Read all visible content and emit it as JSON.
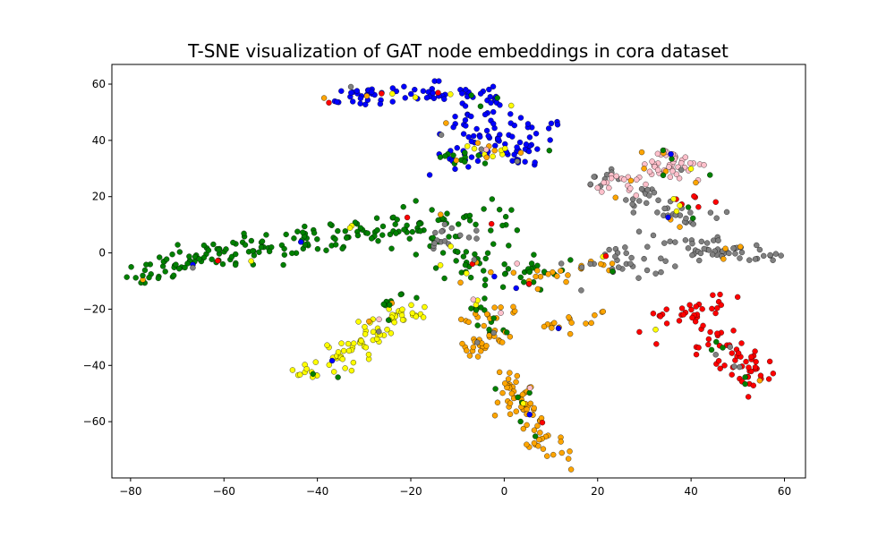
{
  "chart_data": {
    "type": "scatter",
    "title": "T-SNE visualization of GAT node embeddings in cora dataset",
    "xlabel": "",
    "ylabel": "",
    "xlim": [
      -84,
      64.5
    ],
    "ylim": [
      -80,
      67
    ],
    "x_ticks": [
      -80,
      -60,
      -40,
      -20,
      0,
      20,
      40,
      60
    ],
    "y_ticks": [
      -60,
      -40,
      -20,
      0,
      20,
      40,
      60
    ],
    "x_tick_labels": [
      "−80",
      "−60",
      "−40",
      "−20",
      "0",
      "20",
      "40",
      "60"
    ],
    "y_tick_labels": [
      "−60",
      "−40",
      "−20",
      "0",
      "20",
      "40",
      "60"
    ],
    "grid": false,
    "legend": "none",
    "colors": {
      "blue": "#0000ff",
      "green": "#008000",
      "yellow": "#ffff00",
      "orange": "#ffa500",
      "gray": "#808080",
      "pink": "#ffc0cb",
      "red": "#ff0000"
    },
    "clusters": [
      {
        "color": "blue",
        "segments": [
          [
            -38,
            54,
            -20,
            58,
            30,
            2
          ],
          [
            -20,
            58,
            -3,
            56,
            30,
            2
          ],
          [
            -14,
            47,
            -1,
            52,
            18,
            2.5
          ],
          [
            -13,
            42,
            12,
            43,
            35,
            2.5
          ],
          [
            -2,
            40,
            6,
            34,
            30,
            3
          ],
          [
            -15,
            32,
            -5,
            35,
            12,
            2
          ]
        ]
      },
      {
        "color": "green",
        "segments": [
          [
            -78,
            -9,
            -60,
            0,
            50,
            2
          ],
          [
            -60,
            0,
            -40,
            6,
            50,
            2.5
          ],
          [
            -40,
            6,
            -20,
            10,
            50,
            3
          ],
          [
            -20,
            10,
            0,
            12,
            30,
            2.5
          ],
          [
            -15,
            2,
            -5,
            0,
            18,
            3
          ],
          [
            -10,
            -5,
            -5,
            -2,
            10,
            2
          ],
          [
            -6,
            -10,
            12,
            -6,
            25,
            2.5
          ],
          [
            -6,
            -15,
            -3,
            -28,
            10,
            1.5
          ],
          [
            -14,
            34,
            -3,
            32,
            10,
            1.5
          ],
          [
            -25,
            -20,
            -22,
            -15,
            6,
            1.5
          ]
        ]
      },
      {
        "color": "yellow",
        "segments": [
          [
            -42,
            -44,
            -28,
            -28,
            55,
            2
          ],
          [
            -30,
            -26,
            -18,
            -20,
            25,
            1.5
          ],
          [
            -10,
            38,
            3,
            35,
            6,
            1.5
          ]
        ]
      },
      {
        "color": "orange",
        "segments": [
          [
            -8,
            -35,
            0,
            -28,
            25,
            2
          ],
          [
            -9,
            -23,
            2,
            -20,
            12,
            1.5
          ],
          [
            0,
            -44,
            4,
            -56,
            30,
            2
          ],
          [
            4,
            -56,
            12,
            -72,
            30,
            2
          ],
          [
            -2,
            -58,
            6,
            -50,
            8,
            1
          ],
          [
            2,
            -12,
            11,
            -8,
            12,
            2
          ],
          [
            8,
            -28,
            20,
            -22,
            15,
            1.5
          ],
          [
            16,
            -5,
            22,
            -5,
            8,
            1.5
          ]
        ]
      },
      {
        "color": "gray",
        "segments": [
          [
            20,
            -6,
            40,
            5,
            40,
            4
          ],
          [
            38,
            2,
            57,
            -1,
            40,
            2
          ],
          [
            23,
            22,
            35,
            18,
            20,
            3
          ],
          [
            33,
            14,
            46,
            13,
            15,
            2
          ],
          [
            -14,
            5,
            -3,
            7,
            14,
            2
          ],
          [
            18,
            28,
            24,
            27,
            6,
            1.5
          ]
        ]
      },
      {
        "color": "pink",
        "segments": [
          [
            21,
            23,
            38,
            33,
            35,
            2.5
          ],
          [
            30,
            30,
            42,
            31,
            22,
            2.5
          ],
          [
            32,
            37,
            37,
            34,
            8,
            1
          ]
        ]
      },
      {
        "color": "red",
        "segments": [
          [
            34,
            -25,
            48,
            -16,
            30,
            2
          ],
          [
            42,
            -28,
            55,
            -42,
            40,
            2.5
          ],
          [
            48,
            -40,
            54,
            -48,
            12,
            1.5
          ],
          [
            38,
            18,
            46,
            16,
            6,
            1.5
          ]
        ]
      }
    ],
    "noise_points": [
      {
        "color": "orange",
        "count": 35
      },
      {
        "color": "green",
        "count": 40
      },
      {
        "color": "yellow",
        "count": 20
      },
      {
        "color": "blue",
        "count": 10
      },
      {
        "color": "red",
        "count": 12
      },
      {
        "color": "gray",
        "count": 20
      },
      {
        "color": "pink",
        "count": 6
      }
    ]
  }
}
